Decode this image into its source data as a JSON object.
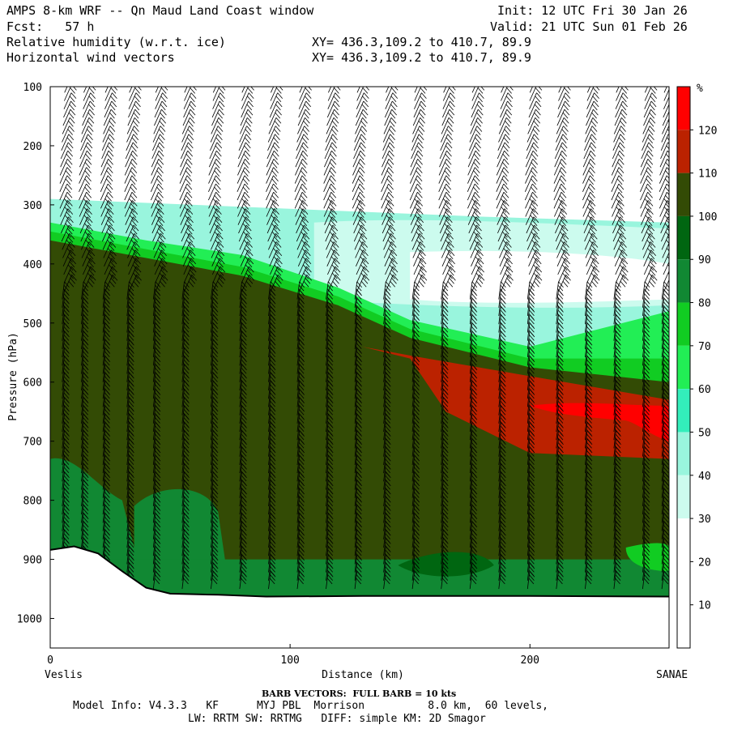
{
  "header": {
    "title_left": "AMPS 8-km WRF -- Qn Maud Land Coast window",
    "init": "Init: 12 UTC Fri 30 Jan 26",
    "fcst": "Fcst:   57 h",
    "valid": "Valid: 21 UTC Sun 01 Feb 26",
    "field1": "Relative humidity (w.r.t. ice)",
    "xy1": "XY= 436.3,109.2 to 410.7, 89.9",
    "field2": "Horizontal wind vectors",
    "xy2": "XY= 436.3,109.2 to 410.7, 89.9"
  },
  "footer": {
    "barb_note": "BARB VECTORS:  FULL BARB = 10 kts",
    "model_info": "Model Info: V4.3.3   KF      MYJ PBL  Morrison          8.0 km,  60 levels,",
    "model_info2": "LW: RRTM SW: RRTMG   DIFF: simple KM: 2D Smagor"
  },
  "chart_data": {
    "type": "heatmap",
    "title": "Relative humidity (w.r.t. ice) cross-section with horizontal wind vectors",
    "xlabel": "Distance (km)",
    "ylabel": "Pressure (hPa)",
    "xlim": [
      0,
      258
    ],
    "ylim": [
      1050,
      100
    ],
    "x_ticks": [
      0,
      100,
      200
    ],
    "y_ticks": [
      100,
      200,
      300,
      400,
      500,
      600,
      700,
      800,
      900,
      1000
    ],
    "x_endpoints": {
      "left": "Veslis",
      "right": "SANAE"
    },
    "colorbar": {
      "unit": "%",
      "levels": [
        10,
        20,
        30,
        40,
        50,
        60,
        70,
        80,
        90,
        100,
        110,
        120
      ],
      "colors": [
        "#ffffff",
        "#ffffff",
        "#ffffff",
        "#ccfbee",
        "#99f5dd",
        "#33eebb",
        "#22ee55",
        "#11cc22",
        "#118833",
        "#006611",
        "#334b05",
        "#bb2200",
        "#ff0000"
      ]
    },
    "terrain_pressure": [
      {
        "x": 0,
        "p": 884
      },
      {
        "x": 10,
        "p": 878
      },
      {
        "x": 20,
        "p": 890
      },
      {
        "x": 30,
        "p": 920
      },
      {
        "x": 40,
        "p": 948
      },
      {
        "x": 50,
        "p": 958
      },
      {
        "x": 70,
        "p": 960
      },
      {
        "x": 90,
        "p": 963
      },
      {
        "x": 130,
        "p": 962
      },
      {
        "x": 200,
        "p": 962
      },
      {
        "x": 258,
        "p": 963
      }
    ],
    "rh_regions": [
      {
        "level": ">100 (dark olive)",
        "top_boundary": [
          {
            "x": 0,
            "p": 360
          },
          {
            "x": 40,
            "p": 390
          },
          {
            "x": 80,
            "p": 420
          },
          {
            "x": 120,
            "p": 470
          },
          {
            "x": 150,
            "p": 525
          },
          {
            "x": 200,
            "p": 575
          },
          {
            "x": 258,
            "p": 600
          }
        ]
      },
      {
        "level": "80-100 (green band)",
        "top_boundary": [
          {
            "x": 0,
            "p": 330
          },
          {
            "x": 40,
            "p": 360
          },
          {
            "x": 80,
            "p": 385
          },
          {
            "x": 120,
            "p": 440
          },
          {
            "x": 150,
            "p": 495
          },
          {
            "x": 200,
            "p": 540
          },
          {
            "x": 258,
            "p": 480
          }
        ]
      },
      {
        "level": "30-60 (cyan)",
        "top_boundary": [
          {
            "x": 0,
            "p": 290
          },
          {
            "x": 60,
            "p": 300
          },
          {
            "x": 120,
            "p": 310
          },
          {
            "x": 180,
            "p": 320
          },
          {
            "x": 258,
            "p": 330
          }
        ]
      },
      {
        "level": "110-120 (red)",
        "region": [
          {
            "x": 130,
            "p": 540
          },
          {
            "x": 150,
            "p": 560
          },
          {
            "x": 165,
            "p": 650
          },
          {
            "x": 200,
            "p": 720
          },
          {
            "x": 258,
            "p": 730
          },
          {
            "x": 258,
            "p": 630
          },
          {
            "x": 200,
            "p": 590
          },
          {
            "x": 150,
            "p": 555
          }
        ]
      }
    ],
    "wind_barb_columns_km": [
      5,
      13,
      22,
      32,
      43,
      55,
      67,
      79,
      91,
      103,
      115,
      127,
      139,
      151,
      163,
      175,
      187,
      199,
      211,
      223,
      235,
      247,
      255
    ]
  }
}
